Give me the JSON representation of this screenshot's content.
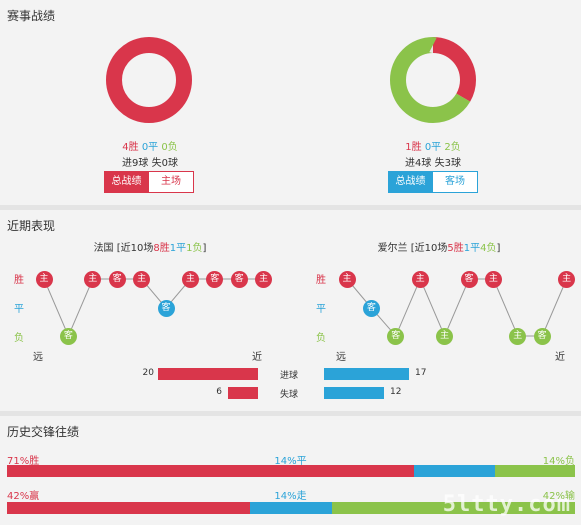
{
  "colors": {
    "win": "#d9364b",
    "draw": "#2ba3d8",
    "loss": "#8bc34a",
    "track": "#e6e6e6"
  },
  "record": {
    "title": "赛事战绩",
    "left": {
      "chart_data": {
        "type": "pie",
        "categories": [
          "胜",
          "平",
          "负"
        ],
        "values": [
          4,
          0,
          0
        ]
      },
      "win": "4胜",
      "draw": "0平",
      "loss": "0负",
      "goals_for": "进9球",
      "goals_against": "失0球",
      "tab_overall": "总战绩",
      "tab_venue": "主场"
    },
    "right": {
      "chart_data": {
        "type": "pie",
        "categories": [
          "胜",
          "平",
          "负"
        ],
        "values": [
          1,
          0,
          2
        ]
      },
      "win": "1胜",
      "draw": "0平",
      "loss": "2负",
      "goals_for": "进4球",
      "goals_against": "失3球",
      "tab_overall": "总战绩",
      "tab_venue": "客场"
    }
  },
  "form": {
    "title": "近期表现",
    "left": {
      "team": "法国",
      "bracket_open": "[近10场",
      "wins": "8胜",
      "draws": "1平",
      "losses": "1负",
      "bracket_close": "]",
      "results": [
        {
          "r": "w",
          "v": "主"
        },
        {
          "r": "l",
          "v": "客"
        },
        {
          "r": "w",
          "v": "主"
        },
        {
          "r": "w",
          "v": "客"
        },
        {
          "r": "w",
          "v": "主"
        },
        {
          "r": "d",
          "v": "客"
        },
        {
          "r": "w",
          "v": "主"
        },
        {
          "r": "w",
          "v": "客"
        },
        {
          "r": "w",
          "v": "客"
        },
        {
          "r": "w",
          "v": "主"
        }
      ]
    },
    "right": {
      "team": "爱尔兰",
      "bracket_open": "[近10场",
      "wins": "5胜",
      "draws": "1平",
      "losses": "4负",
      "bracket_close": "]",
      "results": [
        {
          "r": "w",
          "v": "主"
        },
        {
          "r": "d",
          "v": "客"
        },
        {
          "r": "l",
          "v": "客"
        },
        {
          "r": "w",
          "v": "主"
        },
        {
          "r": "l",
          "v": "主"
        },
        {
          "r": "w",
          "v": "客"
        },
        {
          "r": "w",
          "v": "主"
        },
        {
          "r": "l",
          "v": "主"
        },
        {
          "r": "l",
          "v": "客"
        },
        {
          "r": "w",
          "v": "主"
        }
      ]
    },
    "axis": {
      "win": "胜",
      "draw": "平",
      "loss": "负",
      "far": "远",
      "near": "近"
    },
    "goals": {
      "scored_label": "进球",
      "conceded_label": "失球",
      "left_scored": 20,
      "left_conceded": 6,
      "right_scored": 17,
      "right_conceded": 12
    }
  },
  "history": {
    "title": "历史交锋往绩",
    "row1": {
      "left": "71%胜",
      "mid": "14%平",
      "right": "14%负",
      "values": [
        71,
        14,
        14
      ]
    },
    "row2": {
      "left": "42%赢",
      "mid": "14%走",
      "right": "42%输",
      "values": [
        42,
        14,
        42
      ]
    }
  },
  "watermark": "5ltty.com"
}
